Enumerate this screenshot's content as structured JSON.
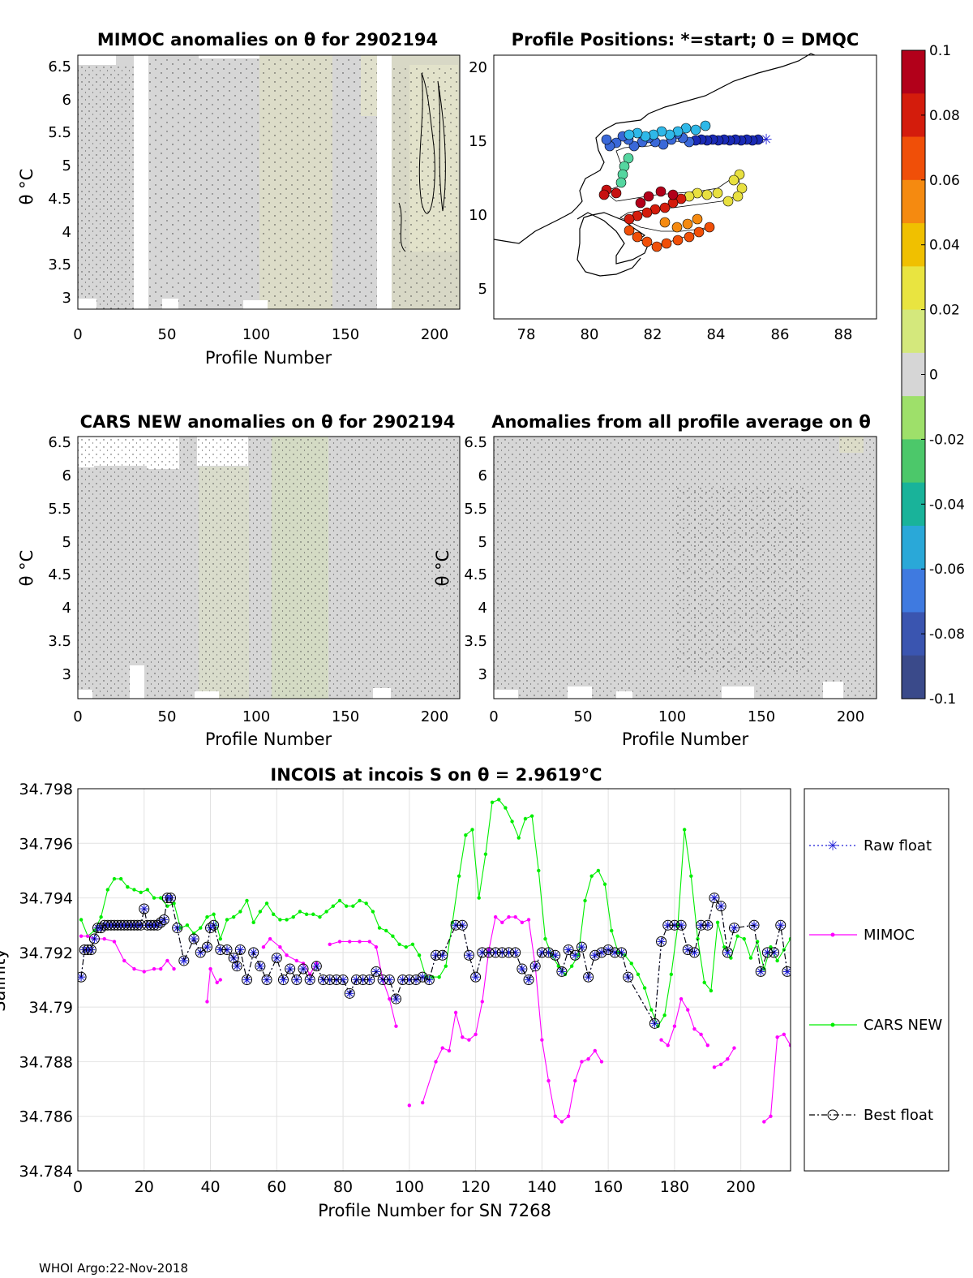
{
  "footer": "WHOI Argo:22-Nov-2018",
  "panels": {
    "mimoc": {
      "title": "MIMOC anomalies on θ  for 2902194",
      "xlabel": "Profile Number",
      "ylabel": "θ °C",
      "xticks": [
        "0",
        "50",
        "100",
        "150",
        "200"
      ],
      "yticks": [
        "3",
        "3.5",
        "4",
        "4.5",
        "5",
        "5.5",
        "6",
        "6.5"
      ]
    },
    "positions": {
      "title": "Profile Positions: *=start; 0 = DMQC",
      "xticks": [
        "78",
        "80",
        "82",
        "84",
        "86",
        "88"
      ],
      "yticks": [
        "5",
        "10",
        "15",
        "20"
      ]
    },
    "cars": {
      "title": "CARS NEW anomalies on θ for 2902194",
      "xlabel": "Profile Number",
      "ylabel": "θ °C",
      "xticks": [
        "0",
        "50",
        "100",
        "150",
        "200"
      ],
      "yticks": [
        "3",
        "3.5",
        "4",
        "4.5",
        "5",
        "5.5",
        "6",
        "6.5"
      ]
    },
    "allavg": {
      "title": "Anomalies from all profile average on θ",
      "xlabel": "Profile Number",
      "ylabel": "θ °C",
      "xticks": [
        "0",
        "50",
        "100",
        "150",
        "200"
      ],
      "yticks": [
        "3",
        "3.5",
        "4",
        "4.5",
        "5",
        "5.5",
        "6",
        "6.5"
      ]
    }
  },
  "colorbar": {
    "labels": [
      "0.1",
      "0.08",
      "0.06",
      "0.04",
      "0.02",
      "0",
      "-0.02",
      "-0.04",
      "-0.06",
      "-0.08",
      "-0.1"
    ],
    "colors": [
      "#b2001a",
      "#d41c0c",
      "#f04f08",
      "#f58a10",
      "#f0c000",
      "#e9e440",
      "#d4e87c",
      "#d6d6d6",
      "#9ee06a",
      "#4cc86a",
      "#19b39a",
      "#2aa8d8",
      "#3f7ae0",
      "#3a55b0",
      "#3a4a8a"
    ]
  },
  "chart_data": {
    "type": "line",
    "title": "INCOIS at incois S on θ = 2.9619°C",
    "xlabel": "Profile Number for SN 7268",
    "ylabel": "Salinity",
    "xlim": [
      0,
      215
    ],
    "ylim": [
      34.784,
      34.798
    ],
    "xticks": [
      "0",
      "20",
      "40",
      "60",
      "80",
      "100",
      "120",
      "140",
      "160",
      "180",
      "200"
    ],
    "yticks": [
      "34.784",
      "34.786",
      "34.788",
      "34.79",
      "34.792",
      "34.794",
      "34.796",
      "34.798"
    ],
    "series": [
      {
        "name": "Raw float",
        "color": "#1f1fd6",
        "style": "dotted",
        "marker": "asterisk",
        "x": [
          1,
          2,
          3,
          4,
          5,
          6,
          7,
          8,
          9,
          10,
          11,
          12,
          13,
          14,
          15,
          16,
          17,
          18,
          19,
          20,
          21,
          22,
          23,
          24,
          25,
          26,
          27,
          28,
          30,
          32,
          35,
          37,
          39,
          40,
          41,
          43,
          45,
          47,
          48,
          49,
          51,
          53,
          55,
          57,
          60,
          62,
          64,
          66,
          68,
          70,
          72,
          74,
          76,
          78,
          80,
          82,
          84,
          86,
          88,
          90,
          92,
          94,
          96,
          98,
          100,
          102,
          104,
          106,
          108,
          110,
          114,
          116,
          118,
          120,
          122,
          124,
          126,
          128,
          130,
          132,
          134,
          136,
          138,
          140,
          142,
          144,
          146,
          148,
          150,
          152,
          154,
          156,
          158,
          160,
          162,
          164,
          166,
          174,
          176,
          178,
          180,
          182,
          184,
          186,
          188,
          190,
          192,
          194,
          196,
          198,
          204,
          206,
          208,
          210,
          212,
          214
        ],
        "y": [
          34.7911,
          34.7921,
          34.7921,
          34.7921,
          34.7925,
          34.7929,
          34.7929,
          34.793,
          34.793,
          34.793,
          34.793,
          34.793,
          34.793,
          34.793,
          34.793,
          34.793,
          34.793,
          34.793,
          34.793,
          34.7936,
          34.793,
          34.793,
          34.793,
          34.793,
          34.7931,
          34.7932,
          34.794,
          34.794,
          34.7929,
          34.7917,
          34.7925,
          34.792,
          34.7922,
          34.7929,
          34.793,
          34.7921,
          34.7921,
          34.7918,
          34.7915,
          34.7921,
          34.791,
          34.792,
          34.7915,
          34.791,
          34.7918,
          34.791,
          34.7914,
          34.791,
          34.7914,
          34.791,
          34.7915,
          34.791,
          34.791,
          34.791,
          34.791,
          34.7905,
          34.791,
          34.791,
          34.791,
          34.7913,
          34.791,
          34.791,
          34.7903,
          34.791,
          34.791,
          34.791,
          34.7911,
          34.791,
          34.7919,
          34.7919,
          34.793,
          34.793,
          34.7919,
          34.7911,
          34.792,
          34.792,
          34.792,
          34.792,
          34.792,
          34.792,
          34.7914,
          34.791,
          34.7915,
          34.792,
          34.792,
          34.7919,
          34.7913,
          34.7921,
          34.7919,
          34.7922,
          34.7911,
          34.7919,
          34.792,
          34.7921,
          34.792,
          34.792,
          34.7911,
          34.7894,
          34.7924,
          34.793,
          34.793,
          34.793,
          34.7921,
          34.792,
          34.793,
          34.793,
          34.794,
          34.7937,
          34.792,
          34.7929,
          34.793,
          34.7913,
          34.792,
          34.792,
          34.793,
          34.7913
        ]
      },
      {
        "name": "MIMOC",
        "color": "#ff00ff",
        "style": "solid",
        "marker": "dot",
        "segments": [
          {
            "x": [
              1,
              3,
              5,
              8,
              11,
              14,
              17,
              20,
              23,
              25,
              27,
              29
            ],
            "y": [
              34.7926,
              34.7926,
              34.7925,
              34.7925,
              34.7924,
              34.7917,
              34.7914,
              34.7913,
              34.7914,
              34.7914,
              34.7917,
              34.7914
            ]
          },
          {
            "x": [
              39,
              40,
              42,
              43
            ],
            "y": [
              34.7902,
              34.7914,
              34.7909,
              34.791
            ]
          },
          {
            "x": [
              56,
              58,
              61,
              63,
              66,
              68,
              70,
              72
            ],
            "y": [
              34.7922,
              34.7925,
              34.7922,
              34.7919,
              34.7917,
              34.7916,
              34.7912,
              34.7916
            ]
          },
          {
            "x": [
              76,
              79,
              82,
              85,
              88,
              90,
              92,
              94,
              96
            ],
            "y": [
              34.7923,
              34.7924,
              34.7924,
              34.7924,
              34.7924,
              34.7922,
              34.791,
              34.7903,
              34.7893
            ]
          },
          {
            "x": [
              100
            ],
            "y": [
              34.7864
            ]
          },
          {
            "x": [
              104,
              108,
              110,
              112,
              114,
              116,
              118,
              120,
              122,
              124,
              126,
              128,
              130,
              132,
              134,
              136,
              138,
              140,
              142,
              144,
              146,
              148,
              150,
              152,
              154,
              156,
              158
            ],
            "y": [
              34.7865,
              34.788,
              34.7885,
              34.7884,
              34.7898,
              34.7889,
              34.7888,
              34.789,
              34.7902,
              34.7921,
              34.7933,
              34.7931,
              34.7933,
              34.7933,
              34.7931,
              34.7932,
              34.7915,
              34.7888,
              34.7873,
              34.786,
              34.7858,
              34.786,
              34.7873,
              34.788,
              34.7881,
              34.7884,
              34.788
            ]
          },
          {
            "x": [
              176,
              178,
              180,
              182,
              184,
              186,
              188,
              190
            ],
            "y": [
              34.7888,
              34.7886,
              34.7893,
              34.7903,
              34.7899,
              34.7892,
              34.789,
              34.7886
            ]
          },
          {
            "x": [
              192,
              194,
              196,
              198
            ],
            "y": [
              34.7878,
              34.7879,
              34.7881,
              34.7885
            ]
          },
          {
            "x": [
              207,
              209,
              211,
              213,
              215
            ],
            "y": [
              34.7858,
              34.786,
              34.7889,
              34.789,
              34.7886
            ]
          }
        ]
      },
      {
        "name": "CARS NEW",
        "color": "#00ee00",
        "style": "solid",
        "marker": "dot",
        "x": [
          1,
          3,
          5,
          7,
          9,
          11,
          13,
          15,
          17,
          19,
          21,
          23,
          25,
          27,
          29,
          31,
          33,
          35,
          37,
          39,
          41,
          43,
          45,
          47,
          49,
          51,
          53,
          55,
          57,
          59,
          61,
          63,
          65,
          67,
          69,
          71,
          73,
          75,
          77,
          79,
          81,
          83,
          85,
          87,
          89,
          91,
          93,
          95,
          97,
          99,
          101,
          103,
          105,
          107,
          109,
          111,
          113,
          115,
          117,
          119,
          121,
          123,
          125,
          127,
          129,
          131,
          133,
          135,
          137,
          139,
          141,
          143,
          145,
          147,
          149,
          151,
          153,
          155,
          157,
          159,
          161,
          163,
          165,
          167,
          169,
          171,
          173,
          175,
          177,
          179,
          181,
          183,
          185,
          187,
          189,
          191,
          193,
          195,
          197,
          199,
          201,
          203,
          205,
          207,
          209,
          211,
          213,
          215
        ],
        "y": [
          34.7932,
          34.7926,
          34.7928,
          34.7933,
          34.7943,
          34.7947,
          34.7947,
          34.7944,
          34.7943,
          34.7942,
          34.7943,
          34.794,
          34.794,
          34.7937,
          34.7938,
          34.7929,
          34.793,
          34.7927,
          34.7929,
          34.7933,
          34.7934,
          34.7925,
          34.7932,
          34.7933,
          34.7935,
          34.7939,
          34.7931,
          34.7935,
          34.7938,
          34.7934,
          34.7932,
          34.7932,
          34.7933,
          34.7935,
          34.7934,
          34.7934,
          34.7933,
          34.7935,
          34.7937,
          34.7939,
          34.7937,
          34.7937,
          34.7939,
          34.7938,
          34.7935,
          34.7929,
          34.7928,
          34.7926,
          34.7923,
          34.7922,
          34.7923,
          34.7919,
          34.7911,
          34.7911,
          34.7911,
          34.7915,
          34.7931,
          34.7948,
          34.7963,
          34.7965,
          34.794,
          34.7956,
          34.7975,
          34.7976,
          34.7973,
          34.7968,
          34.7962,
          34.7969,
          34.797,
          34.795,
          34.7925,
          34.7919,
          34.7915,
          34.7912,
          34.7915,
          34.7919,
          34.7939,
          34.7948,
          34.795,
          34.7945,
          34.7928,
          34.792,
          34.7919,
          34.7916,
          34.7912,
          34.7907,
          34.7899,
          34.7893,
          34.7897,
          34.7912,
          34.793,
          34.7965,
          34.7948,
          34.7925,
          34.7909,
          34.7906,
          34.7931,
          34.7922,
          34.7918,
          34.7926,
          34.7925,
          34.7918,
          34.7924,
          34.7914,
          34.7922,
          34.7917,
          34.7921,
          34.7925
        ]
      },
      {
        "name": "Best float",
        "color": "#000000",
        "style": "dashdot",
        "marker": "circle",
        "x": [
          1,
          2,
          3,
          4,
          5,
          6,
          7,
          8,
          9,
          10,
          11,
          12,
          13,
          14,
          15,
          16,
          17,
          18,
          19,
          20,
          21,
          22,
          23,
          24,
          25,
          26,
          27,
          28,
          30,
          32,
          35,
          37,
          39,
          40,
          41,
          43,
          45,
          47,
          48,
          49,
          51,
          53,
          55,
          57,
          60,
          62,
          64,
          66,
          68,
          70,
          72,
          74,
          76,
          78,
          80,
          82,
          84,
          86,
          88,
          90,
          92,
          94,
          96,
          98,
          100,
          102,
          104,
          106,
          108,
          110,
          114,
          116,
          118,
          120,
          122,
          124,
          126,
          128,
          130,
          132,
          134,
          136,
          138,
          140,
          142,
          144,
          146,
          148,
          150,
          152,
          154,
          156,
          158,
          160,
          162,
          164,
          166,
          174,
          176,
          178,
          180,
          182,
          184,
          186,
          188,
          190,
          192,
          194,
          196,
          198,
          204,
          206,
          208,
          210,
          212,
          214
        ],
        "y": [
          34.7911,
          34.7921,
          34.7921,
          34.7921,
          34.7925,
          34.7929,
          34.7929,
          34.793,
          34.793,
          34.793,
          34.793,
          34.793,
          34.793,
          34.793,
          34.793,
          34.793,
          34.793,
          34.793,
          34.793,
          34.7936,
          34.793,
          34.793,
          34.793,
          34.793,
          34.7931,
          34.7932,
          34.794,
          34.794,
          34.7929,
          34.7917,
          34.7925,
          34.792,
          34.7922,
          34.7929,
          34.793,
          34.7921,
          34.7921,
          34.7918,
          34.7915,
          34.7921,
          34.791,
          34.792,
          34.7915,
          34.791,
          34.7918,
          34.791,
          34.7914,
          34.791,
          34.7914,
          34.791,
          34.7915,
          34.791,
          34.791,
          34.791,
          34.791,
          34.7905,
          34.791,
          34.791,
          34.791,
          34.7913,
          34.791,
          34.791,
          34.7903,
          34.791,
          34.791,
          34.791,
          34.7911,
          34.791,
          34.7919,
          34.7919,
          34.793,
          34.793,
          34.7919,
          34.7911,
          34.792,
          34.792,
          34.792,
          34.792,
          34.792,
          34.792,
          34.7914,
          34.791,
          34.7915,
          34.792,
          34.792,
          34.7919,
          34.7913,
          34.7921,
          34.7919,
          34.7922,
          34.7911,
          34.7919,
          34.792,
          34.7921,
          34.792,
          34.792,
          34.7911,
          34.7894,
          34.7924,
          34.793,
          34.793,
          34.793,
          34.7921,
          34.792,
          34.793,
          34.793,
          34.794,
          34.7937,
          34.792,
          34.7929,
          34.793,
          34.7913,
          34.792,
          34.792,
          34.793,
          34.7913
        ]
      }
    ]
  }
}
